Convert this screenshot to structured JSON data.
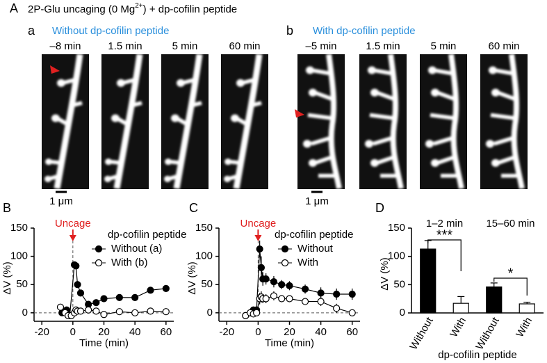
{
  "figure": {
    "panel_A": "A",
    "title": "2P-Glu uncaging (0 Mg",
    "title_sup": "2+",
    "title_end": ") + dp-cofilin peptide",
    "panel_a": {
      "label": "a",
      "condition": "Without dp-cofilin peptide",
      "times": [
        "–8 min",
        "1.5 min",
        "5 min",
        "60 min"
      ],
      "scale_bar": "1 μm"
    },
    "panel_b": {
      "label": "b",
      "condition": "With dp-cofilin peptide",
      "times": [
        "–5 min",
        "1.5 min",
        "5 min",
        "60 min"
      ],
      "scale_bar": "1 μm"
    }
  },
  "chart_data": [
    {
      "type": "line",
      "panel_label": "B",
      "annotation": "Uncage",
      "legend_title": "dp-cofilin peptide",
      "xlabel": "Time (min)",
      "ylabel": "ΔV (%)",
      "xlim": [
        -25,
        65
      ],
      "xticks": [
        -20,
        0,
        20,
        40,
        60
      ],
      "ylim": [
        -15,
        150
      ],
      "yticks": [
        0,
        50,
        100,
        150
      ],
      "zero_line": true,
      "series": [
        {
          "name": "Without (a)",
          "color": "#000000",
          "marker_fill": "#000000",
          "x": [
            -7,
            -4,
            -2,
            1,
            2,
            3,
            5,
            10,
            15,
            20,
            30,
            40,
            50,
            60
          ],
          "values": [
            0,
            5,
            -5,
            85,
            83,
            50,
            35,
            15,
            18,
            25,
            27,
            27,
            40,
            43
          ]
        },
        {
          "name": "With (b)",
          "color": "#000000",
          "marker_fill": "#ffffff",
          "x": [
            -8,
            -5,
            -3,
            -1,
            1,
            2,
            3,
            5,
            10,
            15,
            20,
            30,
            40,
            50,
            60
          ],
          "values": [
            10,
            0,
            -5,
            -5,
            0,
            5,
            3,
            3,
            5,
            3,
            -3,
            2,
            0,
            3,
            2
          ]
        }
      ]
    },
    {
      "type": "line",
      "panel_label": "C",
      "annotation": "Uncage",
      "legend_title": "dp-cofilin peptide",
      "xlabel": "Time (min)",
      "ylabel": "ΔV (%)",
      "xlim": [
        -25,
        65
      ],
      "xticks": [
        -20,
        0,
        20,
        40,
        60
      ],
      "ylim": [
        -15,
        150
      ],
      "yticks": [
        0,
        50,
        100,
        150
      ],
      "zero_line": true,
      "series": [
        {
          "name": "Without",
          "color": "#000000",
          "marker_fill": "#000000",
          "x": [
            -8,
            -5,
            -3,
            -1,
            1,
            2,
            3,
            5,
            10,
            15,
            20,
            30,
            40,
            50,
            60
          ],
          "values": [
            -5,
            0,
            5,
            5,
            113,
            80,
            60,
            60,
            55,
            50,
            48,
            42,
            35,
            33,
            33
          ],
          "errors": [
            3,
            3,
            5,
            5,
            15,
            20,
            12,
            10,
            10,
            8,
            8,
            8,
            10,
            10,
            10
          ]
        },
        {
          "name": "With",
          "color": "#000000",
          "marker_fill": "#ffffff",
          "x": [
            -8,
            -5,
            -3,
            -1,
            1,
            2,
            3,
            5,
            10,
            15,
            20,
            30,
            40,
            50,
            60
          ],
          "values": [
            -5,
            0,
            -2,
            0,
            25,
            28,
            25,
            25,
            30,
            25,
            25,
            20,
            20,
            8,
            0
          ],
          "errors": [
            3,
            3,
            3,
            5,
            10,
            10,
            8,
            8,
            8,
            6,
            6,
            6,
            8,
            8,
            3
          ]
        }
      ]
    },
    {
      "type": "bar",
      "panel_label": "D",
      "xlabel": "dp-cofilin peptide",
      "ylabel": "ΔV (%)",
      "group_labels": [
        "1–2 min",
        "15–60 min"
      ],
      "annotations": [
        "***",
        "*"
      ],
      "categories": [
        "Without",
        "With",
        "Without",
        "With"
      ],
      "values": [
        113,
        17,
        46,
        16
      ],
      "errors": [
        15,
        12,
        7,
        3
      ],
      "colors": [
        "#000000",
        "#ffffff",
        "#000000",
        "#ffffff"
      ],
      "ylim": [
        0,
        150
      ],
      "yticks": [
        0,
        50,
        100,
        150
      ]
    }
  ]
}
